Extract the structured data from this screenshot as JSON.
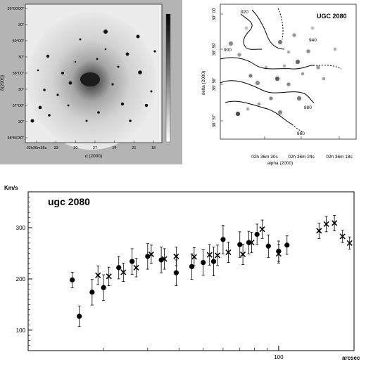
{
  "left_panel": {
    "y_ticks": [
      "39°00'00\"",
      "30\"",
      "59°00\"",
      "30\"",
      "58°00\"",
      "30\"",
      "57°00\"",
      "30\"",
      "38°56'30\""
    ],
    "y_label": "δ(2000)",
    "x_ticks": [
      "02h36m36s",
      "33",
      "30",
      "27",
      "24",
      "21",
      "18"
    ],
    "x_label": "α (2000)"
  },
  "right_panel": {
    "title": "UGC 2080",
    "y_ticks": [
      "39° 00'",
      "38° 59'",
      "38° 58'",
      "38° 57'"
    ],
    "y_label": "delta (2000)",
    "x_ticks": [
      "02h 36m 30s",
      "02h 36m 24s",
      "02h 36m 18s"
    ],
    "x_label": "alpha (2000)",
    "contour_labels": [
      "920",
      "940",
      "900",
      "880",
      "860"
    ]
  },
  "chart_data": {
    "type": "scatter",
    "title": "ugc 2080",
    "ylabel": "Km/s",
    "xlabel": "arcsec",
    "x_scale": "log",
    "xlim": [
      10,
      200
    ],
    "ylim": [
      60,
      370
    ],
    "y_ticks": [
      100,
      200,
      300
    ],
    "x_tick_label": "100",
    "series": [
      {
        "marker": "circle",
        "points": [
          {
            "x": 15,
            "y": 198,
            "err": 15
          },
          {
            "x": 16,
            "y": 127,
            "err": 20
          },
          {
            "x": 18,
            "y": 174,
            "err": 25
          },
          {
            "x": 20,
            "y": 183,
            "err": 25
          },
          {
            "x": 23,
            "y": 222,
            "err": 22
          },
          {
            "x": 26,
            "y": 234,
            "err": 25
          },
          {
            "x": 30,
            "y": 244,
            "err": 25
          },
          {
            "x": 34,
            "y": 237,
            "err": 25
          },
          {
            "x": 39,
            "y": 212,
            "err": 25
          },
          {
            "x": 45,
            "y": 224,
            "err": 25
          },
          {
            "x": 50,
            "y": 232,
            "err": 25
          },
          {
            "x": 55,
            "y": 234,
            "err": 28
          },
          {
            "x": 60,
            "y": 277,
            "err": 28
          },
          {
            "x": 70,
            "y": 267,
            "err": 25
          },
          {
            "x": 76,
            "y": 271,
            "err": 22
          },
          {
            "x": 82,
            "y": 287,
            "err": 20
          },
          {
            "x": 91,
            "y": 264,
            "err": 22
          },
          {
            "x": 100,
            "y": 254,
            "err": 20
          },
          {
            "x": 108,
            "y": 266,
            "err": 18
          }
        ]
      },
      {
        "marker": "cross",
        "points": [
          {
            "x": 19,
            "y": 207,
            "err": 18
          },
          {
            "x": 21,
            "y": 205,
            "err": 18
          },
          {
            "x": 24,
            "y": 213,
            "err": 18
          },
          {
            "x": 27,
            "y": 222,
            "err": 18
          },
          {
            "x": 31,
            "y": 248,
            "err": 18
          },
          {
            "x": 35,
            "y": 239,
            "err": 20
          },
          {
            "x": 39,
            "y": 244,
            "err": 18
          },
          {
            "x": 46,
            "y": 243,
            "err": 18
          },
          {
            "x": 53,
            "y": 247,
            "err": 20
          },
          {
            "x": 57,
            "y": 246,
            "err": 20
          },
          {
            "x": 63,
            "y": 252,
            "err": 20
          },
          {
            "x": 72,
            "y": 248,
            "err": 20
          },
          {
            "x": 78,
            "y": 271,
            "err": 20
          },
          {
            "x": 86,
            "y": 297,
            "err": 18
          },
          {
            "x": 100,
            "y": 249,
            "err": 18
          },
          {
            "x": 145,
            "y": 294,
            "err": 15
          },
          {
            "x": 155,
            "y": 307,
            "err": 15
          },
          {
            "x": 167,
            "y": 309,
            "err": 15
          },
          {
            "x": 180,
            "y": 283,
            "err": 12
          },
          {
            "x": 192,
            "y": 270,
            "err": 12
          }
        ]
      }
    ]
  }
}
